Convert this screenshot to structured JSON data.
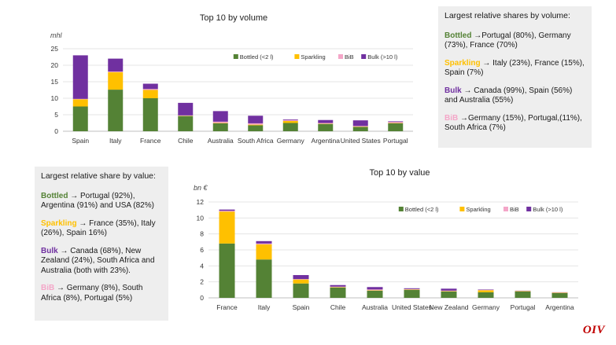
{
  "chart_data": [
    {
      "type": "bar",
      "stacked": true,
      "title": "Top 10 by volume",
      "ylabel": "mhl",
      "xlabel": "",
      "ylim": [
        0,
        25
      ],
      "yticks": [
        0,
        5,
        10,
        15,
        20,
        25
      ],
      "legend_position": "top-right",
      "categories": [
        "Spain",
        "Italy",
        "France",
        "Chile",
        "Australia",
        "South Africa",
        "Germany",
        "Argentina",
        "United States",
        "Portugal"
      ],
      "series": [
        {
          "name": "Bottled (<2 l)",
          "color": "#548235",
          "values": [
            7.5,
            12.6,
            10.0,
            4.6,
            2.4,
            1.8,
            2.5,
            2.2,
            1.3,
            2.4
          ]
        },
        {
          "name": "Sparkling",
          "color": "#ffc000",
          "values": [
            2.2,
            5.3,
            2.5,
            0.1,
            0.1,
            0.2,
            0.6,
            0.1,
            0.1,
            0.1
          ]
        },
        {
          "name": "BiB",
          "color": "#f4a6c8",
          "values": [
            0.1,
            0.2,
            0.3,
            0.1,
            0.4,
            0.4,
            0.3,
            0.2,
            0.2,
            0.3
          ]
        },
        {
          "name": "Bulk (>10 l)",
          "color": "#7030a0",
          "values": [
            13.2,
            3.9,
            1.6,
            3.8,
            3.2,
            2.3,
            0.2,
            0.9,
            1.7,
            0.2
          ]
        }
      ]
    },
    {
      "type": "bar",
      "stacked": true,
      "title": "Top 10 by value",
      "ylabel": "bn €",
      "xlabel": "",
      "ylim": [
        0,
        12
      ],
      "yticks": [
        0,
        2,
        4,
        6,
        8,
        10,
        12
      ],
      "legend_position": "top-right",
      "categories": [
        "France",
        "Italy",
        "Spain",
        "Chile",
        "Australia",
        "United States",
        "New Zealand",
        "Germany",
        "Portugal",
        "Argentina"
      ],
      "series": [
        {
          "name": "Bottled (<2 l)",
          "color": "#548235",
          "values": [
            6.8,
            4.8,
            1.8,
            1.3,
            0.9,
            1.0,
            0.8,
            0.7,
            0.8,
            0.6
          ]
        },
        {
          "name": "Sparkling",
          "color": "#ffc000",
          "values": [
            4.0,
            1.9,
            0.5,
            0.05,
            0.05,
            0.05,
            0.05,
            0.25,
            0.05,
            0.05
          ]
        },
        {
          "name": "BiB",
          "color": "#f4a6c8",
          "values": [
            0.1,
            0.1,
            0.05,
            0.05,
            0.1,
            0.05,
            0.05,
            0.05,
            0.02,
            0.02
          ]
        },
        {
          "name": "Bulk (>10 l)",
          "color": "#7030a0",
          "values": [
            0.15,
            0.3,
            0.5,
            0.2,
            0.3,
            0.1,
            0.25,
            0.05,
            0.03,
            0.03
          ]
        }
      ]
    }
  ],
  "volume_box": {
    "title": "Largest relative shares by volume:",
    "bottled_kw": "Bottled",
    "bottled_text": " →Portugal (80%), Germany (73%), France (70%)",
    "sparkling_kw": "Sparkling",
    "sparkling_text": " → Italy (23%), France (15%), Spain (7%)",
    "bulk_kw": "Bulk",
    "bulk_text": " → Canada (99%), Spain (56%) and Australia (55%)",
    "bib_kw": "BiB",
    "bib_text": " →Germany (15%), Portugal,(11%), South Africa (7%)"
  },
  "value_box": {
    "title": "Largest relative share by value:",
    "bottled_kw": "Bottled",
    "bottled_text": " → Portugal (92%), Argentina (91%) and USA (82%)",
    "sparkling_kw": "Sparkling",
    "sparkling_text": " → France (35%), Italy (26%), Spain 16%)",
    "bulk_kw": "Bulk",
    "bulk_text": " → Canada (68%), New Zealand (24%), South Africa and Australia (both with 23%).",
    "bib_kw": "BiB",
    "bib_text": " → Germany (8%), South Africa (8%), Portugal (5%)"
  },
  "logo": "OIV"
}
